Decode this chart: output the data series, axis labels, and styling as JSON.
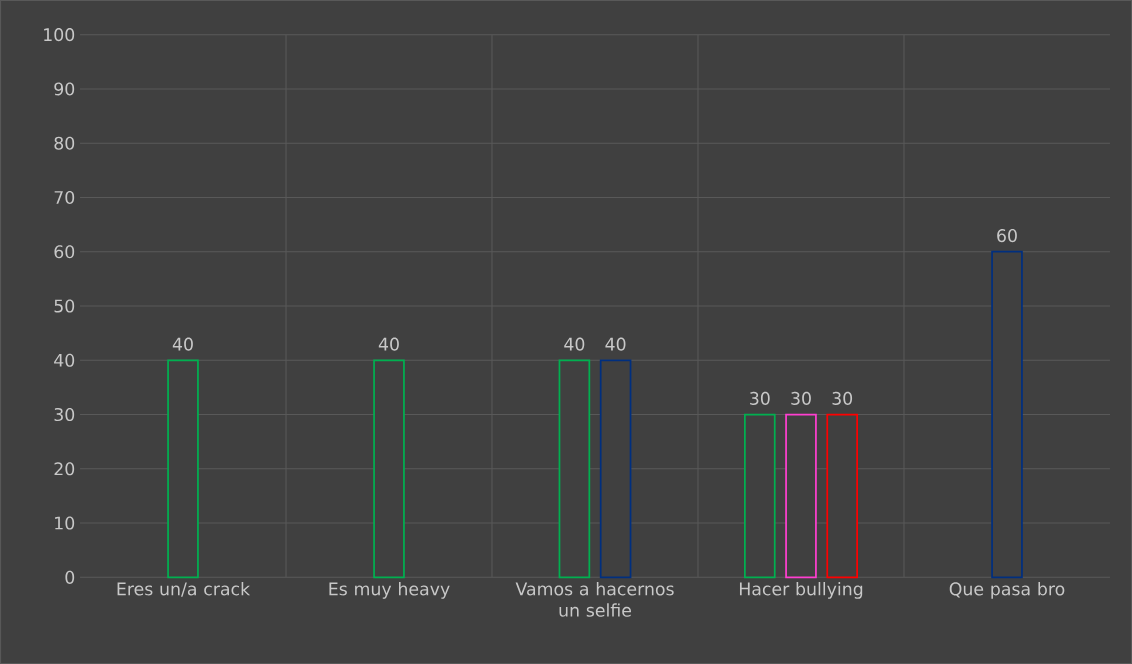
{
  "chart_data": {
    "type": "bar",
    "categories": [
      "Eres un/a crack",
      "Es muy heavy",
      "Vamos a hacernos un selfie",
      "Hacer bullying",
      "Que pasa bro"
    ],
    "series": [
      {
        "color": "#00b050",
        "values": [
          40,
          40,
          40,
          30,
          null
        ]
      },
      {
        "color": "#002f7f",
        "values": [
          null,
          null,
          40,
          null,
          60
        ]
      },
      {
        "color": "#ff3fd0",
        "values": [
          null,
          null,
          null,
          30,
          null
        ]
      },
      {
        "color": "#ff0000",
        "values": [
          null,
          null,
          null,
          30,
          null
        ]
      }
    ],
    "ylim": [
      0,
      100
    ],
    "yticks": [
      0,
      10,
      20,
      30,
      40,
      50,
      60,
      70,
      80,
      90,
      100
    ],
    "grid": true,
    "data_labels": true
  }
}
